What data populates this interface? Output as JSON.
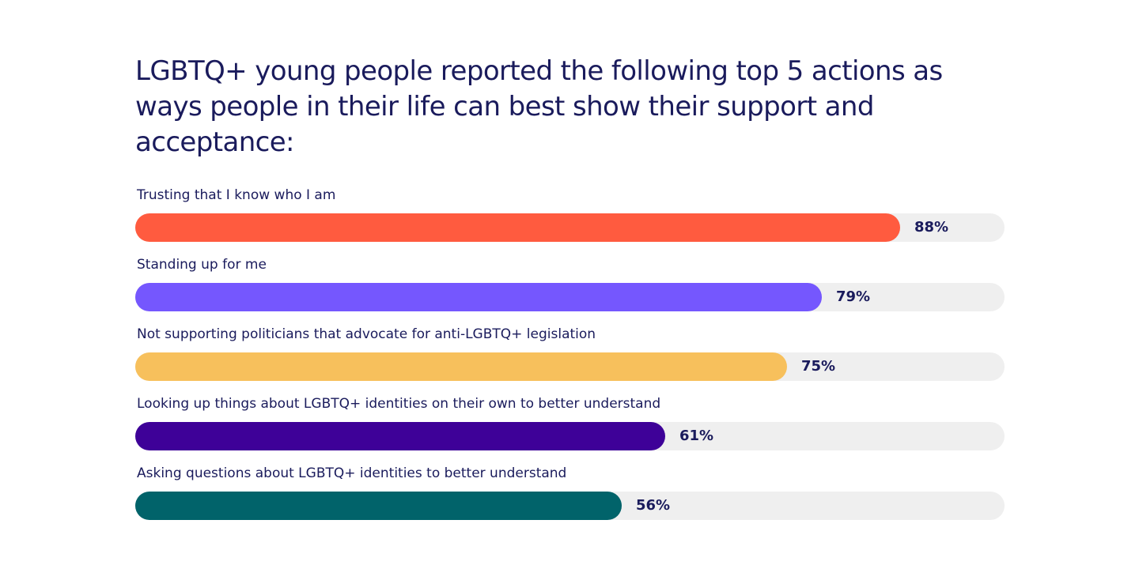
{
  "chart_data": {
    "type": "bar",
    "orientation": "horizontal",
    "title": "LGBTQ+ young people reported the following top 5 actions as ways people in their life can best show their support and acceptance:",
    "categories": [
      "Trusting that I know who I am",
      "Standing up for me",
      "Not supporting politicians that advocate for anti-LGBTQ+ legislation",
      "Looking up things about LGBTQ+ identities on their own to better understand",
      "Asking questions about LGBTQ+ identities to better understand"
    ],
    "values": [
      88,
      79,
      75,
      61,
      56
    ],
    "value_labels": [
      "88%",
      "79%",
      "75%",
      "61%",
      "56%"
    ],
    "colors": [
      "#ff5b3f",
      "#7557fe",
      "#f7c05c",
      "#3e0198",
      "#01636a"
    ],
    "track_color": "#efefef",
    "xlim": [
      0,
      100
    ],
    "grid": false,
    "legend": "none"
  }
}
